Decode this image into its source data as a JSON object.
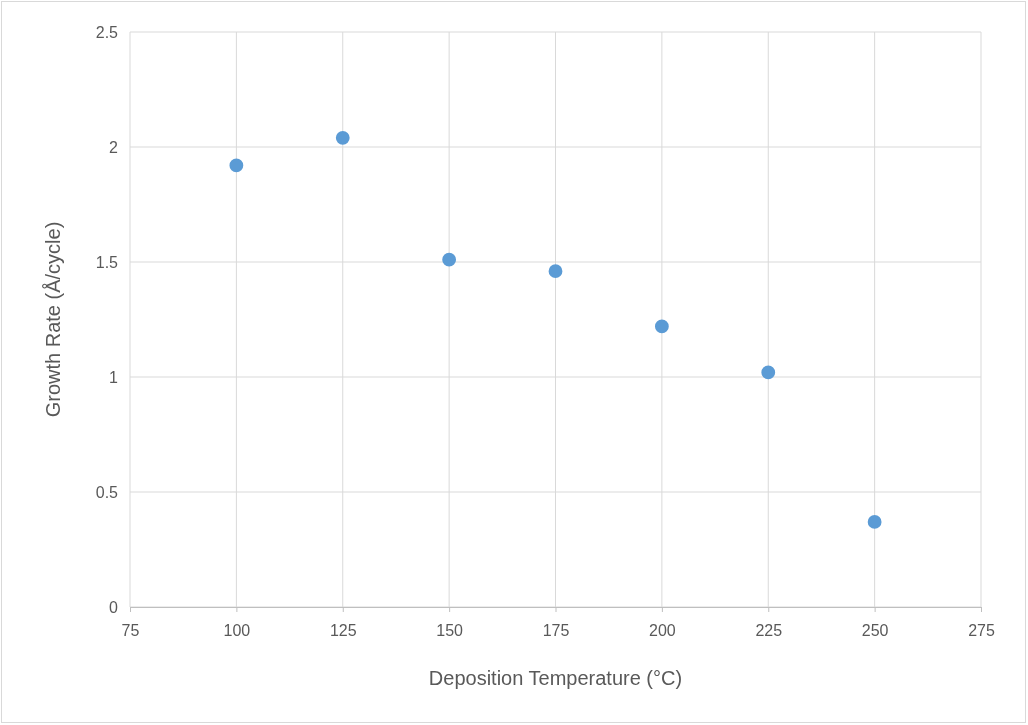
{
  "chart_data": {
    "type": "scatter",
    "xlabel": "Deposition Temperature (°C)",
    "ylabel": "Growth Rate (Å/cycle)",
    "x": [
      100,
      125,
      150,
      175,
      200,
      225,
      250
    ],
    "series": [
      {
        "color": "#5b9bd5",
        "values": [
          1.92,
          2.04,
          1.51,
          1.46,
          1.22,
          1.02,
          0.37
        ]
      }
    ],
    "xlim": [
      75,
      275
    ],
    "xticks": [
      75,
      100,
      125,
      150,
      175,
      200,
      225,
      250,
      275
    ],
    "ylim": [
      0,
      2.5
    ],
    "yticks": [
      0,
      0.5,
      1,
      1.5,
      2,
      2.5
    ],
    "grid": true,
    "marker": "circle"
  }
}
